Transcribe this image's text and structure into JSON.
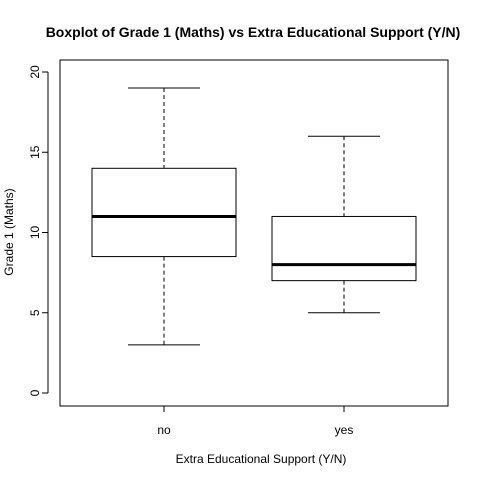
{
  "chart_data": {
    "type": "boxplot",
    "title": "Boxplot of Grade 1 (Maths)  vs  Extra Educational Support (Y/N)",
    "xlabel": "Extra Educational Support (Y/N)",
    "ylabel": "Grade 1 (Maths)",
    "ylim": [
      0,
      20
    ],
    "yticks": [
      0,
      5,
      10,
      15,
      20
    ],
    "categories": [
      "no",
      "yes"
    ],
    "boxes": [
      {
        "category": "no",
        "min": 3,
        "q1": 8.5,
        "median": 11,
        "q3": 14,
        "max": 19
      },
      {
        "category": "yes",
        "min": 5,
        "q1": 7,
        "median": 8,
        "q3": 11,
        "max": 16
      }
    ],
    "grid": false,
    "legend": "none"
  }
}
